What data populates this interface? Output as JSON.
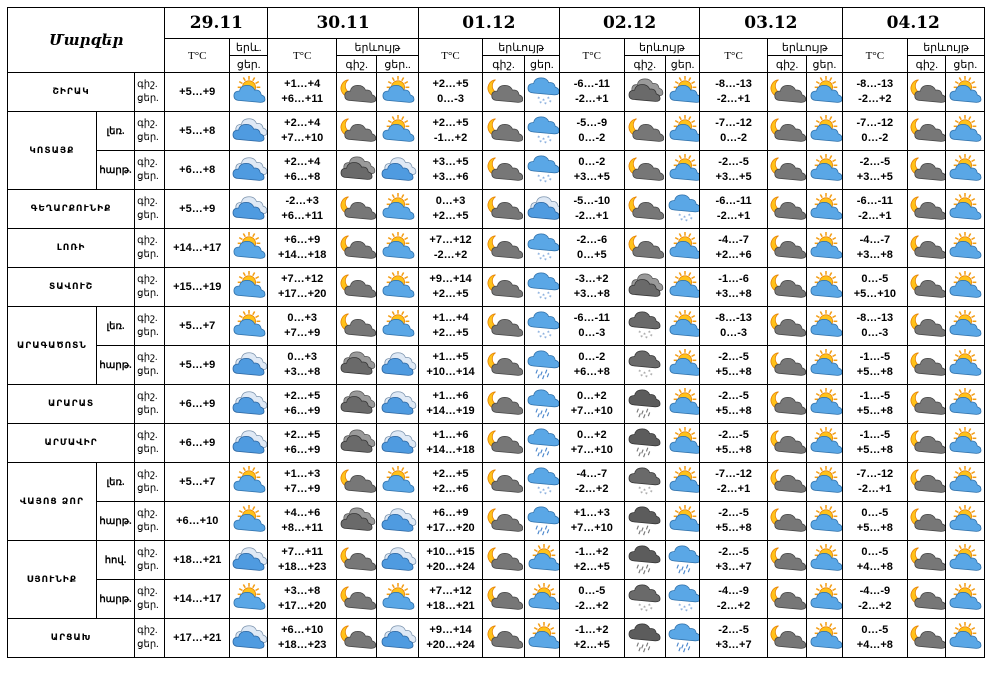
{
  "header": {
    "corner": "Մարզեր",
    "t_label": "T°C",
    "phen_label": "երևույթ",
    "phen_label_short": "երև.",
    "day_label": "ցեր.",
    "day_label2": "ցեր.",
    "night_label": "գիշ.",
    "day_label3": "ցեր..",
    "dates": [
      "29.11",
      "30.11",
      "01.12",
      "02.12",
      "03.12",
      "04.12"
    ]
  },
  "row_labels": {
    "night": "գիշ.",
    "day": "ցեր."
  },
  "rows": [
    {
      "region": "ՇԻՐԱԿ",
      "sub": "",
      "d": [
        [
          "+5…+9"
        ],
        [
          "+1…+4",
          "+6…+11"
        ],
        [
          "+2…+5",
          "0…-3"
        ],
        [
          "-6…-11",
          "-2…+1"
        ],
        [
          "-8…-13",
          "-2…+1"
        ],
        [
          "-8…-13",
          "-2…+2"
        ]
      ],
      "ic": [
        [
          "sun-cloud"
        ],
        [
          "moon-cloud",
          "sun-cloud"
        ],
        [
          "moon-cloud",
          "snow-cloud"
        ],
        [
          "dark-cloud",
          "sun-cloud"
        ],
        [
          "moon-cloud",
          "sun-cloud"
        ],
        [
          "moon-cloud",
          "sun-cloud"
        ]
      ]
    },
    {
      "region": "ԿՈՏԱՅՔ",
      "sub": "լեռ.",
      "d": [
        [
          "+5…+8"
        ],
        [
          "+2…+4",
          "+7…+10"
        ],
        [
          "+2…+5",
          "-1…+2"
        ],
        [
          "-5…-9",
          "0…-2"
        ],
        [
          "-7…-12",
          "0…-2"
        ],
        [
          "-7…-12",
          "0…-2"
        ]
      ],
      "ic": [
        [
          "blue-cloud"
        ],
        [
          "moon-cloud",
          "sun-cloud"
        ],
        [
          "moon-cloud",
          "snow-cloud"
        ],
        [
          "moon-cloud",
          "sun-cloud"
        ],
        [
          "moon-cloud",
          "sun-cloud"
        ],
        [
          "moon-cloud",
          "sun-cloud"
        ]
      ]
    },
    {
      "region": "",
      "sub": "հարթ.",
      "d": [
        [
          "+6…+8"
        ],
        [
          "+2…+4",
          "+6…+8"
        ],
        [
          "+3…+5",
          "+3…+6"
        ],
        [
          "0…-2",
          "+3…+5"
        ],
        [
          "-2…-5",
          "+3…+5"
        ],
        [
          "-2…-5",
          "+3…+5"
        ]
      ],
      "ic": [
        [
          "blue-cloud"
        ],
        [
          "dark-cloud",
          "blue-cloud"
        ],
        [
          "moon-cloud",
          "snow-cloud"
        ],
        [
          "moon-cloud",
          "sun-cloud"
        ],
        [
          "moon-cloud",
          "sun-cloud"
        ],
        [
          "moon-cloud",
          "sun-cloud"
        ]
      ]
    },
    {
      "region": "ԳԵՂԱՐՔՈՒՆԻՔ",
      "sub": "",
      "d": [
        [
          "+5…+9"
        ],
        [
          "-2…+3",
          "+6…+11"
        ],
        [
          "0…+3",
          "+2…+5"
        ],
        [
          "-5…-10",
          "-2…+1"
        ],
        [
          "-6…-11",
          "-2…+1"
        ],
        [
          "-6…-11",
          "-2…+1"
        ]
      ],
      "ic": [
        [
          "blue-cloud"
        ],
        [
          "moon-cloud",
          "sun-cloud"
        ],
        [
          "moon-cloud",
          "blue-cloud"
        ],
        [
          "moon-cloud",
          "snow-cloud"
        ],
        [
          "moon-cloud",
          "sun-cloud"
        ],
        [
          "moon-cloud",
          "sun-cloud"
        ]
      ]
    },
    {
      "region": "ԼՈՌԻ",
      "sub": "",
      "d": [
        [
          "+14…+17"
        ],
        [
          "+6…+9",
          "+14…+18"
        ],
        [
          "+7…+12",
          "-2…+2"
        ],
        [
          "-2…-6",
          "0…+5"
        ],
        [
          "-4…-7",
          "+2…+6"
        ],
        [
          "-4…-7",
          "+3…+8"
        ]
      ],
      "ic": [
        [
          "sun-cloud"
        ],
        [
          "moon-cloud",
          "sun-cloud"
        ],
        [
          "moon-cloud",
          "snow-cloud"
        ],
        [
          "moon-cloud",
          "sun-cloud"
        ],
        [
          "moon-cloud",
          "sun-cloud"
        ],
        [
          "moon-cloud",
          "sun-cloud"
        ]
      ]
    },
    {
      "region": "ՏԱՎՈՒՇ",
      "sub": "",
      "d": [
        [
          "+15…+19"
        ],
        [
          "+7…+12",
          "+17…+20"
        ],
        [
          "+9…+14",
          "+2…+5"
        ],
        [
          "-3…+2",
          "+3…+8"
        ],
        [
          "-1…-6",
          "+3…+8"
        ],
        [
          "0…-5",
          "+5…+10"
        ]
      ],
      "ic": [
        [
          "sun-cloud"
        ],
        [
          "moon-cloud",
          "sun-cloud"
        ],
        [
          "moon-cloud",
          "snow-cloud"
        ],
        [
          "dark-cloud",
          "sun-cloud"
        ],
        [
          "moon-cloud",
          "sun-cloud"
        ],
        [
          "moon-cloud",
          "sun-cloud"
        ]
      ]
    },
    {
      "region": "ԱՐԱԳԱԾՈՏՆ",
      "sub": "լեռ.",
      "d": [
        [
          "+5…+7"
        ],
        [
          "0…+3",
          "+7…+9"
        ],
        [
          "+1…+4",
          "+2…+5"
        ],
        [
          "-6…-11",
          "0…-3"
        ],
        [
          "-8…-13",
          "0…-3"
        ],
        [
          "-8…-13",
          "0…-3"
        ]
      ],
      "ic": [
        [
          "sun-cloud"
        ],
        [
          "moon-cloud",
          "sun-cloud"
        ],
        [
          "moon-cloud",
          "snow-cloud"
        ],
        [
          "snow-dark",
          "sun-cloud"
        ],
        [
          "moon-cloud",
          "sun-cloud"
        ],
        [
          "moon-cloud",
          "sun-cloud"
        ]
      ]
    },
    {
      "region": "",
      "sub": "հարթ.",
      "d": [
        [
          "+5…+9"
        ],
        [
          "0…+3",
          "+3…+8"
        ],
        [
          "+1…+5",
          "+10…+14"
        ],
        [
          "0…-2",
          "+6…+8"
        ],
        [
          "-2…-5",
          "+5…+8"
        ],
        [
          "-1…-5",
          "+5…+8"
        ]
      ],
      "ic": [
        [
          "blue-cloud"
        ],
        [
          "dark-cloud",
          "blue-cloud"
        ],
        [
          "moon-cloud",
          "rain-cloud"
        ],
        [
          "snow-dark",
          "sun-cloud"
        ],
        [
          "moon-cloud",
          "sun-cloud"
        ],
        [
          "moon-cloud",
          "sun-cloud"
        ]
      ]
    },
    {
      "region": "ԱՐԱՐԱՏ",
      "sub": "",
      "d": [
        [
          "+6…+9"
        ],
        [
          "+2…+5",
          "+6…+9"
        ],
        [
          "+1…+6",
          "+14…+19"
        ],
        [
          "0…+2",
          "+7…+10"
        ],
        [
          "-2…-5",
          "+5…+8"
        ],
        [
          "-1…-5",
          "+5…+8"
        ]
      ],
      "ic": [
        [
          "blue-cloud"
        ],
        [
          "dark-cloud",
          "blue-cloud"
        ],
        [
          "moon-cloud",
          "rain-cloud"
        ],
        [
          "rain-dark",
          "sun-cloud"
        ],
        [
          "moon-cloud",
          "sun-cloud"
        ],
        [
          "moon-cloud",
          "sun-cloud"
        ]
      ]
    },
    {
      "region": "ԱՐՄԱՎԻՐ",
      "sub": "",
      "d": [
        [
          "+6…+9"
        ],
        [
          "+2…+5",
          "+6…+9"
        ],
        [
          "+1…+6",
          "+14…+18"
        ],
        [
          "0…+2",
          "+7…+10"
        ],
        [
          "-2…-5",
          "+5…+8"
        ],
        [
          "-1…-5",
          "+5…+8"
        ]
      ],
      "ic": [
        [
          "blue-cloud"
        ],
        [
          "dark-cloud",
          "blue-cloud"
        ],
        [
          "moon-cloud",
          "rain-cloud"
        ],
        [
          "rain-dark",
          "sun-cloud"
        ],
        [
          "moon-cloud",
          "sun-cloud"
        ],
        [
          "moon-cloud",
          "sun-cloud"
        ]
      ]
    },
    {
      "region": "ՎԱՅՈՑ ՁՈՐ",
      "sub": "լեռ.",
      "d": [
        [
          "+5…+7"
        ],
        [
          "+1…+3",
          "+7…+9"
        ],
        [
          "+2…+5",
          "+2…+6"
        ],
        [
          "-4…-7",
          "-2…+2"
        ],
        [
          "-7…-12",
          "-2…+1"
        ],
        [
          "-7…-12",
          "-2…+1"
        ]
      ],
      "ic": [
        [
          "sun-cloud"
        ],
        [
          "moon-cloud",
          "sun-cloud"
        ],
        [
          "moon-cloud",
          "snow-cloud"
        ],
        [
          "snow-dark",
          "sun-cloud"
        ],
        [
          "moon-cloud",
          "sun-cloud"
        ],
        [
          "moon-cloud",
          "sun-cloud"
        ]
      ]
    },
    {
      "region": "",
      "sub": "հարթ.",
      "d": [
        [
          "+6…+10"
        ],
        [
          "+4…+6",
          "+8…+11"
        ],
        [
          "+6…+9",
          "+17…+20"
        ],
        [
          "+1…+3",
          "+7…+10"
        ],
        [
          "-2…-5",
          "+5…+8"
        ],
        [
          "0…-5",
          "+5…+8"
        ]
      ],
      "ic": [
        [
          "sun-cloud"
        ],
        [
          "dark-cloud",
          "blue-cloud"
        ],
        [
          "moon-cloud",
          "rain-cloud"
        ],
        [
          "rain-dark",
          "sun-cloud"
        ],
        [
          "moon-cloud",
          "sun-cloud"
        ],
        [
          "moon-cloud",
          "sun-cloud"
        ]
      ]
    },
    {
      "region": "ՍՅՈՒՆԻՔ",
      "sub": "հով.",
      "d": [
        [
          "+18…+21"
        ],
        [
          "+7…+11",
          "+18…+23"
        ],
        [
          "+10…+15",
          "+20…+24"
        ],
        [
          "-1…+2",
          "+2…+5"
        ],
        [
          "-2…-5",
          "+3…+7"
        ],
        [
          "0…-5",
          "+4…+8"
        ]
      ],
      "ic": [
        [
          "blue-cloud"
        ],
        [
          "moon-cloud",
          "blue-cloud"
        ],
        [
          "moon-cloud",
          "sun-cloud"
        ],
        [
          "rain-dark",
          "rain-cloud"
        ],
        [
          "moon-cloud",
          "sun-cloud"
        ],
        [
          "moon-cloud",
          "sun-cloud"
        ]
      ]
    },
    {
      "region": "",
      "sub": "հարթ.",
      "d": [
        [
          "+14…+17"
        ],
        [
          "+3…+8",
          "+17…+20"
        ],
        [
          "+7…+12",
          "+18…+21"
        ],
        [
          "0…-5",
          "-2…+2"
        ],
        [
          "-4…-9",
          "-2…+2"
        ],
        [
          "-4…-9",
          "-2…+2"
        ]
      ],
      "ic": [
        [
          "sun-cloud"
        ],
        [
          "moon-cloud",
          "sun-cloud"
        ],
        [
          "moon-cloud",
          "sun-cloud"
        ],
        [
          "snow-dark",
          "snow-cloud"
        ],
        [
          "moon-cloud",
          "sun-cloud"
        ],
        [
          "moon-cloud",
          "sun-cloud"
        ]
      ]
    },
    {
      "region": "ԱՐՑԱԽ",
      "sub": "",
      "d": [
        [
          "+17…+21"
        ],
        [
          "+6…+10",
          "+18…+23"
        ],
        [
          "+9…+14",
          "+20…+24"
        ],
        [
          "-1…+2",
          "+2…+5"
        ],
        [
          "-2…-5",
          "+3…+7"
        ],
        [
          "0…-5",
          "+4…+8"
        ]
      ],
      "ic": [
        [
          "blue-cloud"
        ],
        [
          "moon-cloud",
          "blue-cloud"
        ],
        [
          "moon-cloud",
          "sun-cloud"
        ],
        [
          "rain-dark",
          "rain-cloud"
        ],
        [
          "moon-cloud",
          "sun-cloud"
        ],
        [
          "moon-cloud",
          "sun-cloud"
        ]
      ]
    }
  ]
}
